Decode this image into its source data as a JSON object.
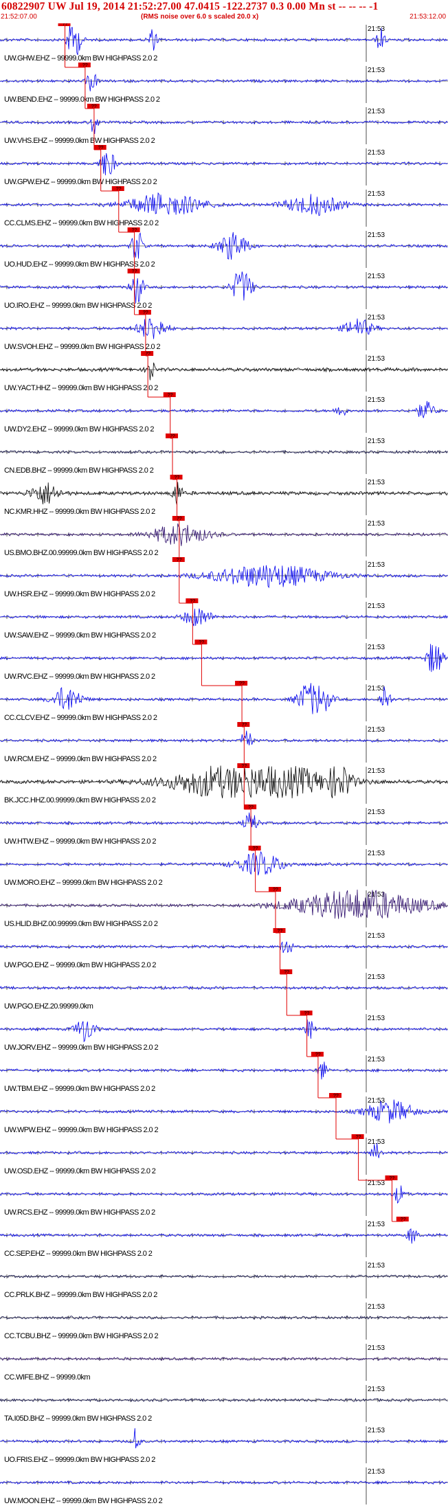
{
  "header": {
    "title": "60822907 UW Jul 19, 2014 21:52:27.00   47.0415 -122.2737  0.3 0.00 Mn st -- -- --  -1",
    "start_time": "21:52:07.00",
    "noise_note": "(RMS noise over 6.0 s scaled 20.0 x)",
    "end_time": "21:53:12.00"
  },
  "time_mark": "21:53",
  "pick_label": "??",
  "colors": {
    "title": "#d40000",
    "pick": "#e00000",
    "trace_blue": "#0000ee",
    "trace_black": "#000000",
    "trace_navy": "#10104a",
    "trace_purple": "#2a0a6a",
    "grid": "#000000"
  },
  "stations": [
    {
      "label": "UW.GHW.EHZ -- 99999.0km BW  HIGHPASS  2.0  2",
      "color": "blue",
      "pick": 0.145,
      "events": [
        [
          0.165,
          0.015,
          2.8
        ],
        [
          0.34,
          0.01,
          1.5
        ],
        [
          0.85,
          0.01,
          1.6
        ]
      ]
    },
    {
      "label": "UW.BEND.EHZ -- 99999.0km BW  HIGHPASS  2.0  2",
      "color": "blue",
      "pick": 0.19,
      "events": [
        [
          0.205,
          0.01,
          1.6
        ]
      ]
    },
    {
      "label": "UW.VHS.EHZ -- 99999.0km BW  HIGHPASS  2.0  2",
      "color": "blue",
      "pick": 0.21,
      "events": [
        [
          0.21,
          0.008,
          1.8
        ]
      ]
    },
    {
      "label": "UW.GPW.EHZ -- 99999.0km BW  HIGHPASS  2.0  2",
      "color": "blue",
      "pick": 0.225,
      "events": [
        [
          0.24,
          0.015,
          2.2
        ]
      ]
    },
    {
      "label": "CC.CLMS.EHZ -- 99999.0km BW  HIGHPASS  2.0  2",
      "color": "blue",
      "pick": 0.265,
      "events": [
        [
          0.37,
          0.08,
          1.6
        ],
        [
          0.7,
          0.06,
          1.4
        ]
      ]
    },
    {
      "label": "UO.HUD.EHZ -- 99999.0km BW  HIGHPASS  2.0  2",
      "color": "blue",
      "pick": 0.3,
      "events": [
        [
          0.305,
          0.01,
          3.2
        ],
        [
          0.52,
          0.03,
          2.0
        ]
      ]
    },
    {
      "label": "UO.IRO.EHZ -- 99999.0km BW  HIGHPASS  2.0  2",
      "color": "blue",
      "pick": 0.3,
      "events": [
        [
          0.305,
          0.012,
          3.5
        ],
        [
          0.54,
          0.02,
          2.8
        ]
      ]
    },
    {
      "label": "UW.SVOH.EHZ -- 99999.0km BW  HIGHPASS  2.0  2",
      "color": "blue",
      "pick": 0.325,
      "events": [
        [
          0.34,
          0.03,
          1.7
        ],
        [
          0.8,
          0.03,
          1.3
        ]
      ]
    },
    {
      "label": "UW.YACT.HHZ -- 99999.0km BW  HIGHPASS  2.0  2",
      "color": "black",
      "pick": 0.33,
      "events": [
        [
          0.335,
          0.008,
          1.7
        ]
      ]
    },
    {
      "label": "UW.DY2.EHZ -- 99999.0km BW  HIGHPASS  2.0  2",
      "color": "blue",
      "pick": 0.38,
      "events": [
        [
          0.76,
          0.01,
          1.2
        ],
        [
          0.95,
          0.02,
          1.2
        ]
      ]
    },
    {
      "label": "CN.EDB.BHZ -- 99999.0km BW  HIGHPASS  2.0  2",
      "color": "navy",
      "pick": 0.385,
      "events": []
    },
    {
      "label": "NC.KMR.HHZ -- 99999.0km BW  HIGHPASS  2.0  2",
      "color": "black",
      "pick": 0.395,
      "events": [
        [
          0.1,
          0.03,
          1.2
        ],
        [
          0.395,
          0.01,
          1.5
        ]
      ]
    },
    {
      "label": "US.BMO.BHZ.00.99999.0km BW  HIGHPASS  2.0  2",
      "color": "purple",
      "pick": 0.4,
      "events": [
        [
          0.4,
          0.06,
          1.5
        ]
      ]
    },
    {
      "label": "UW.HSR.EHZ -- 99999.0km BW  HIGHPASS  2.0  2",
      "color": "blue",
      "pick": 0.4,
      "events": [
        [
          0.6,
          0.12,
          1.6
        ]
      ]
    },
    {
      "label": "UW.SAW.EHZ -- 99999.0km BW  HIGHPASS  2.0  2",
      "color": "blue",
      "pick": 0.43,
      "events": [
        [
          0.44,
          0.03,
          1.3
        ]
      ]
    },
    {
      "label": "UW.RVC.EHZ -- 99999.0km BW  HIGHPASS  2.0  2",
      "color": "blue",
      "pick": 0.45,
      "events": [
        [
          0.97,
          0.015,
          3.0
        ]
      ]
    },
    {
      "label": "CC.CLCV.EHZ -- 99999.0km BW  HIGHPASS  2.0  2",
      "color": "blue",
      "pick": 0.54,
      "events": [
        [
          0.15,
          0.03,
          1.8
        ],
        [
          0.7,
          0.03,
          3.5
        ],
        [
          0.86,
          0.01,
          2.4
        ]
      ]
    },
    {
      "label": "UW.RCM.EHZ -- 99999.0km BW  HIGHPASS  2.0  2",
      "color": "blue",
      "pick": 0.545,
      "events": [
        [
          0.55,
          0.01,
          2.0
        ]
      ]
    },
    {
      "label": "BK.JCC.HHZ.00.99999.0km BW  HIGHPASS  2.0  2",
      "color": "black",
      "pick": 0.545,
      "events": [
        [
          0.56,
          0.15,
          2.5
        ],
        [
          0.76,
          0.02,
          2.5
        ]
      ]
    },
    {
      "label": "UW.HTW.EHZ -- 99999.0km BW  HIGHPASS  2.0  2",
      "color": "blue",
      "pick": 0.56,
      "events": [
        [
          0.56,
          0.015,
          1.4
        ]
      ]
    },
    {
      "label": "UW.MORO.EHZ -- 99999.0km BW  HIGHPASS  2.0  2",
      "color": "blue",
      "pick": 0.57,
      "events": [
        [
          0.58,
          0.05,
          1.6
        ]
      ]
    },
    {
      "label": "US.HLID.BHZ.00.99999.0km BW  HIGHPASS  2.0  2",
      "color": "purple",
      "pick": 0.615,
      "events": [
        [
          0.8,
          0.14,
          2.2
        ]
      ]
    },
    {
      "label": "UW.PGO.EHZ -- 99999.0km BW  HIGHPASS  2.0  2",
      "color": "blue",
      "pick": 0.625,
      "events": [
        [
          0.64,
          0.01,
          1.6
        ]
      ]
    },
    {
      "label": "UW.PGO.EHZ.20.99999.0km",
      "color": "blue",
      "pick": 0.64,
      "events": []
    },
    {
      "label": "UW.JORV.EHZ -- 99999.0km BW  HIGHPASS  2.0  2",
      "color": "blue",
      "pick": 0.685,
      "events": [
        [
          0.19,
          0.02,
          1.8
        ],
        [
          0.69,
          0.01,
          1.4
        ]
      ]
    },
    {
      "label": "UW.TBM.EHZ -- 99999.0km BW  HIGHPASS  2.0  2",
      "color": "blue",
      "pick": 0.71,
      "events": [
        [
          0.72,
          0.01,
          1.4
        ]
      ]
    },
    {
      "label": "UW.WPW.EHZ -- 99999.0km BW  HIGHPASS  2.0  2",
      "color": "blue",
      "pick": 0.75,
      "events": [
        [
          0.87,
          0.05,
          1.6
        ]
      ]
    },
    {
      "label": "UW.OSD.EHZ -- 99999.0km BW  HIGHPASS  2.0  2",
      "color": "blue",
      "pick": 0.8,
      "events": [
        [
          0.84,
          0.01,
          1.3
        ]
      ]
    },
    {
      "label": "UW.RCS.EHZ -- 99999.0km BW  HIGHPASS  2.0  2",
      "color": "blue",
      "pick": 0.875,
      "events": [
        [
          0.89,
          0.01,
          1.4
        ]
      ]
    },
    {
      "label": "CC.SEP.EHZ -- 99999.0km BW  HIGHPASS  2.0  2",
      "color": "blue",
      "pick": 0.9,
      "events": [
        [
          0.92,
          0.01,
          1.4
        ]
      ]
    },
    {
      "label": "CC.PRLK.BHZ -- 99999.0km BW  HIGHPASS  2.0  2",
      "color": "navy",
      "pick": null,
      "events": []
    },
    {
      "label": "CC.TCBU.BHZ -- 99999.0km BW  HIGHPASS  2.0  2",
      "color": "navy",
      "pick": null,
      "events": []
    },
    {
      "label": "CC.WIFE.BHZ -- 99999.0km",
      "color": "purple",
      "pick": null,
      "events": []
    },
    {
      "label": "TA.I05D.BHZ -- 99999.0km BW  HIGHPASS  2.0  2",
      "color": "navy",
      "pick": null,
      "events": []
    },
    {
      "label": "UO.FRIS.EHZ -- 99999.0km BW  HIGHPASS  2.0  2",
      "color": "blue",
      "pick": null,
      "events": [
        [
          0.305,
          0.006,
          3.0
        ]
      ]
    },
    {
      "label": "UW.MOON.EHZ -- 99999.0km BW  HIGHPASS  2.0  2",
      "color": "blue",
      "pick": null,
      "events": []
    }
  ]
}
